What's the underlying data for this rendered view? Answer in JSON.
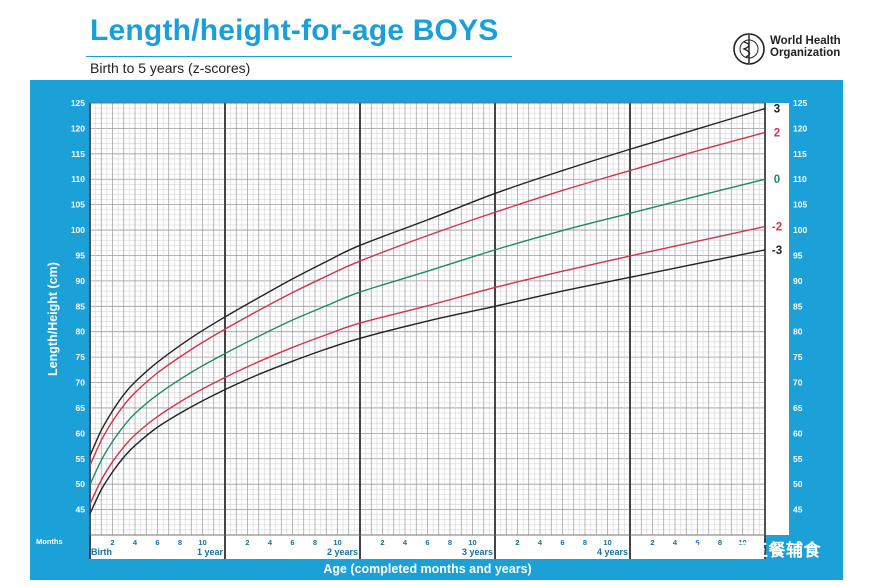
{
  "header": {
    "title": "Length/height-for-age BOYS",
    "subtitle": "Birth to 5 years (z-scores)"
  },
  "logo": {
    "line1": "World Health",
    "line2": "Organization"
  },
  "watermark": {
    "text": "一日五餐辅食"
  },
  "colors": {
    "frame": "#1ba0d8",
    "grid": "#b0b0b0",
    "z_black": "#222222",
    "z_red": "#d2334e",
    "z_green": "#1f8a68"
  },
  "chart_data": {
    "type": "line",
    "ylabel": "Length/Height (cm)",
    "xlabel": "Age (completed months and years)",
    "months_label": "Months",
    "xlim": [
      0,
      60
    ],
    "ylim": [
      40,
      125
    ],
    "y_ticks": [
      45,
      50,
      55,
      60,
      65,
      70,
      75,
      80,
      85,
      90,
      95,
      100,
      105,
      110,
      115,
      120,
      125
    ],
    "year_labels": [
      {
        "month": 0,
        "label": "Birth"
      },
      {
        "month": 12,
        "label": "1 year"
      },
      {
        "month": 24,
        "label": "2 years"
      },
      {
        "month": 36,
        "label": "3 years"
      },
      {
        "month": 48,
        "label": "4 years"
      }
    ],
    "month_tick_labels": [
      "2",
      "4",
      "6",
      "8",
      "10"
    ],
    "x": [
      0,
      1,
      2,
      3,
      4,
      6,
      9,
      12,
      15,
      18,
      21,
      24,
      30,
      36,
      42,
      48,
      54,
      60
    ],
    "series": [
      {
        "name": "3",
        "color": "#222222",
        "values": [
          55.6,
          60.6,
          64.4,
          67.6,
          70.1,
          74.0,
          78.8,
          82.9,
          86.7,
          90.4,
          93.8,
          97.0,
          102.0,
          107.2,
          111.7,
          115.9,
          119.9,
          123.9
        ]
      },
      {
        "name": "2",
        "color": "#d2334e",
        "values": [
          53.7,
          58.6,
          62.4,
          65.5,
          68.0,
          71.9,
          76.5,
          80.5,
          84.2,
          87.7,
          90.9,
          93.9,
          98.9,
          103.5,
          107.8,
          111.7,
          115.6,
          119.2
        ]
      },
      {
        "name": "0",
        "color": "#1f8a68",
        "values": [
          49.9,
          54.7,
          58.4,
          61.4,
          63.9,
          67.6,
          72.0,
          75.7,
          79.1,
          82.3,
          85.1,
          87.8,
          91.9,
          96.1,
          99.9,
          103.3,
          106.7,
          110.0
        ]
      },
      {
        "name": "-2",
        "color": "#d2334e",
        "values": [
          46.1,
          50.8,
          54.4,
          57.3,
          59.7,
          63.3,
          67.5,
          71.0,
          74.1,
          76.9,
          79.4,
          81.7,
          85.1,
          88.7,
          91.9,
          94.9,
          97.8,
          100.7
        ]
      },
      {
        "name": "-3",
        "color": "#222222",
        "values": [
          44.2,
          48.9,
          52.4,
          55.3,
          57.6,
          61.2,
          65.2,
          68.6,
          71.6,
          74.2,
          76.6,
          78.7,
          82.1,
          85.0,
          88.0,
          90.7,
          93.4,
          96.1
        ]
      }
    ]
  }
}
